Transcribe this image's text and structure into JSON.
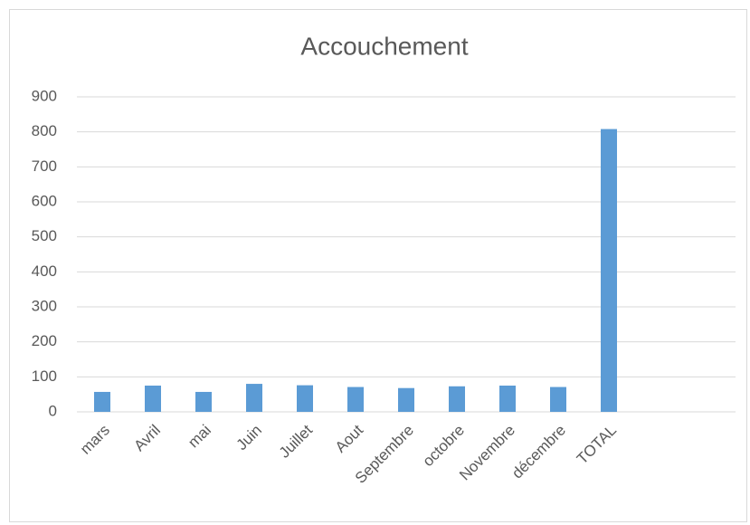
{
  "chart_data": {
    "type": "bar",
    "title": "Accouchement",
    "categories": [
      "mars",
      "Avril",
      "mai",
      "Juin",
      "Juillet",
      "Aout",
      "Septembre",
      "octobre",
      "Novembre",
      "décembre",
      "TOTAL",
      null,
      null
    ],
    "values": [
      57,
      75,
      57,
      80,
      76,
      71,
      68,
      73,
      75,
      71,
      808,
      null,
      null
    ],
    "color": "#5b9bd5",
    "ylim": [
      0,
      900
    ],
    "yticks": [
      0,
      100,
      200,
      300,
      400,
      500,
      600,
      700,
      800,
      900
    ],
    "grid": true
  }
}
